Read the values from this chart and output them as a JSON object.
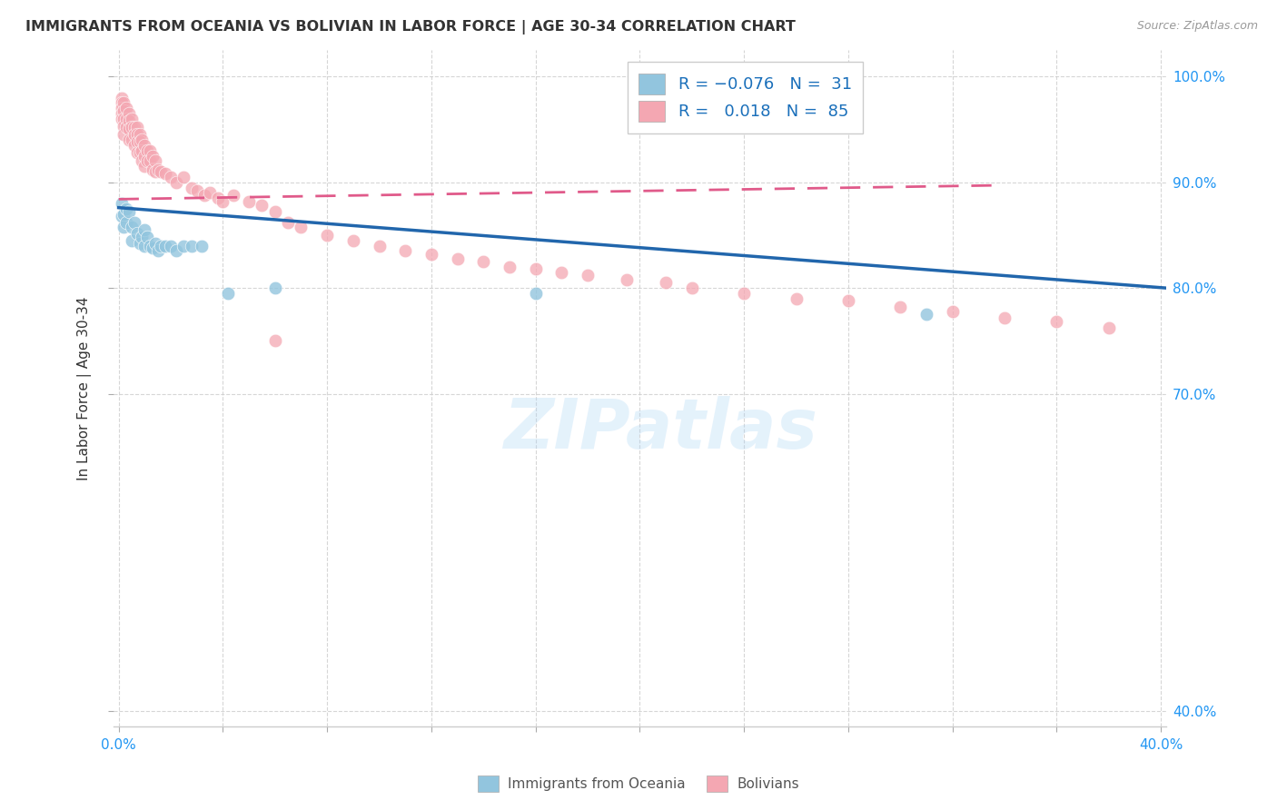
{
  "title": "IMMIGRANTS FROM OCEANIA VS BOLIVIAN IN LABOR FORCE | AGE 30-34 CORRELATION CHART",
  "source": "Source: ZipAtlas.com",
  "ylabel": "In Labor Force | Age 30-34",
  "xlim": [
    -0.002,
    0.402
  ],
  "ylim": [
    0.385,
    1.025
  ],
  "xtick_positions": [
    0.0,
    0.04,
    0.08,
    0.12,
    0.16,
    0.2,
    0.24,
    0.28,
    0.32,
    0.36,
    0.4
  ],
  "xtick_labels_show": [
    "0.0%",
    "",
    "",
    "",
    "",
    "",
    "",
    "",
    "",
    "",
    "40.0%"
  ],
  "ytick_positions": [
    0.4,
    0.7,
    0.8,
    0.9,
    1.0
  ],
  "ytick_labels": [
    "40.0%",
    "70.0%",
    "80.0%",
    "90.0%",
    "100.0%"
  ],
  "legend_labels": [
    "Immigrants from Oceania",
    "Bolivians"
  ],
  "blue_color": "#92c5de",
  "pink_color": "#f4a7b2",
  "blue_line_color": "#2166ac",
  "pink_line_color": "#e05a8a",
  "watermark": "ZIPatlas",
  "oceania_x": [
    0.001,
    0.001,
    0.002,
    0.002,
    0.003,
    0.003,
    0.004,
    0.005,
    0.005,
    0.006,
    0.007,
    0.008,
    0.009,
    0.01,
    0.01,
    0.011,
    0.012,
    0.013,
    0.014,
    0.015,
    0.016,
    0.018,
    0.02,
    0.022,
    0.025,
    0.028,
    0.032,
    0.042,
    0.06,
    0.16,
    0.31
  ],
  "oceania_y": [
    0.88,
    0.868,
    0.87,
    0.858,
    0.875,
    0.862,
    0.872,
    0.858,
    0.845,
    0.862,
    0.852,
    0.842,
    0.848,
    0.855,
    0.84,
    0.848,
    0.84,
    0.838,
    0.842,
    0.835,
    0.84,
    0.84,
    0.84,
    0.835,
    0.84,
    0.84,
    0.84,
    0.795,
    0.8,
    0.795,
    0.775
  ],
  "bolivian_x": [
    0.001,
    0.001,
    0.001,
    0.001,
    0.001,
    0.002,
    0.002,
    0.002,
    0.002,
    0.002,
    0.003,
    0.003,
    0.003,
    0.004,
    0.004,
    0.004,
    0.004,
    0.005,
    0.005,
    0.005,
    0.006,
    0.006,
    0.006,
    0.007,
    0.007,
    0.007,
    0.007,
    0.008,
    0.008,
    0.008,
    0.009,
    0.009,
    0.009,
    0.01,
    0.01,
    0.01,
    0.011,
    0.011,
    0.012,
    0.012,
    0.013,
    0.013,
    0.014,
    0.014,
    0.015,
    0.016,
    0.018,
    0.02,
    0.022,
    0.025,
    0.028,
    0.03,
    0.033,
    0.035,
    0.038,
    0.04,
    0.044,
    0.05,
    0.055,
    0.06,
    0.065,
    0.07,
    0.08,
    0.09,
    0.1,
    0.11,
    0.12,
    0.13,
    0.14,
    0.15,
    0.16,
    0.17,
    0.18,
    0.195,
    0.21,
    0.22,
    0.24,
    0.26,
    0.28,
    0.3,
    0.32,
    0.34,
    0.36,
    0.38,
    0.06
  ],
  "bolivian_y": [
    0.98,
    0.975,
    0.97,
    0.965,
    0.96,
    0.975,
    0.968,
    0.96,
    0.953,
    0.945,
    0.97,
    0.96,
    0.952,
    0.965,
    0.958,
    0.95,
    0.94,
    0.96,
    0.952,
    0.94,
    0.952,
    0.945,
    0.935,
    0.952,
    0.945,
    0.938,
    0.928,
    0.945,
    0.938,
    0.928,
    0.94,
    0.93,
    0.92,
    0.935,
    0.925,
    0.915,
    0.93,
    0.92,
    0.93,
    0.92,
    0.925,
    0.912,
    0.92,
    0.91,
    0.912,
    0.91,
    0.908,
    0.905,
    0.9,
    0.905,
    0.895,
    0.892,
    0.888,
    0.89,
    0.885,
    0.882,
    0.888,
    0.882,
    0.878,
    0.872,
    0.862,
    0.858,
    0.85,
    0.845,
    0.84,
    0.835,
    0.832,
    0.828,
    0.825,
    0.82,
    0.818,
    0.815,
    0.812,
    0.808,
    0.805,
    0.8,
    0.795,
    0.79,
    0.788,
    0.782,
    0.778,
    0.772,
    0.768,
    0.762,
    0.75
  ],
  "blue_trend_x": [
    0.0,
    0.402
  ],
  "blue_trend_y": [
    0.876,
    0.8
  ],
  "pink_trend_x": [
    0.0,
    0.335
  ],
  "pink_trend_y": [
    0.884,
    0.897
  ]
}
